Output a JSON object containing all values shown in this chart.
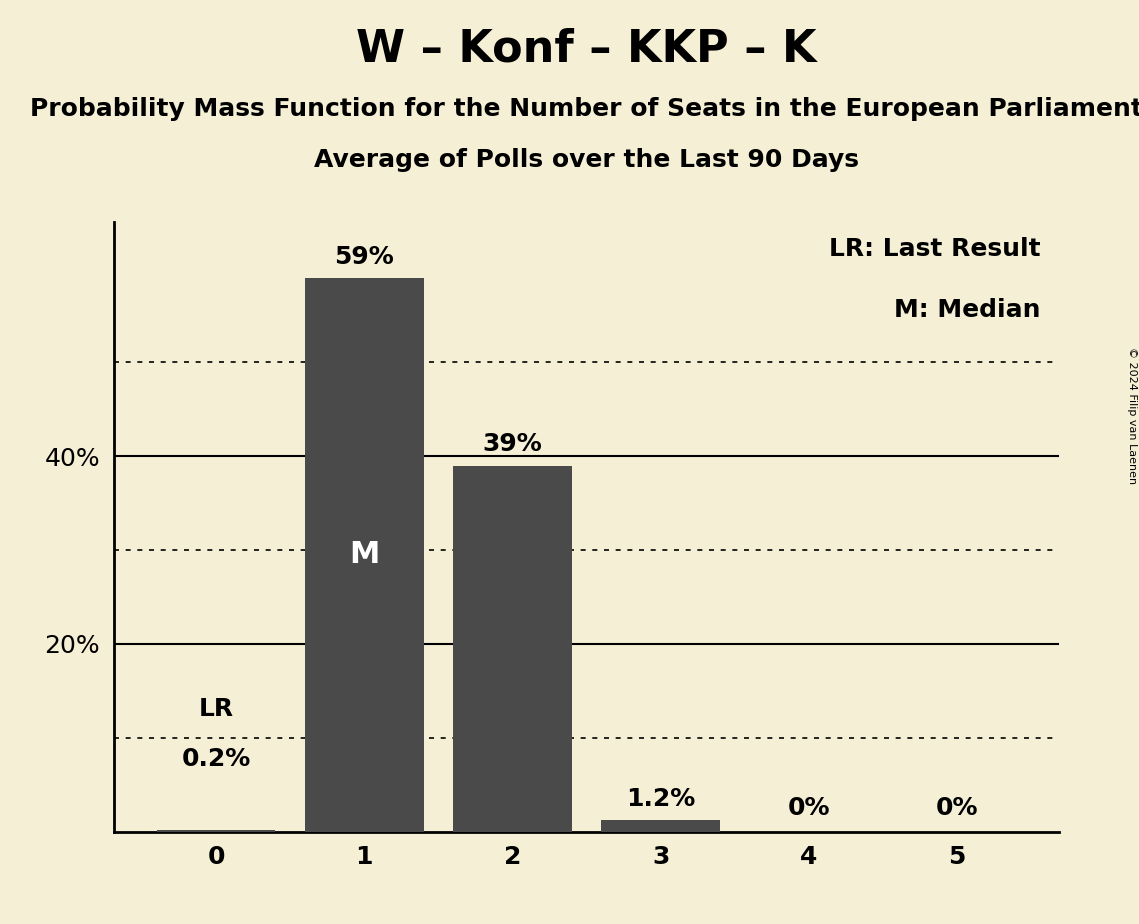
{
  "title": "W – Konf – KKP – K",
  "subtitle1": "Probability Mass Function for the Number of Seats in the European Parliament",
  "subtitle2": "Average of Polls over the Last 90 Days",
  "categories": [
    0,
    1,
    2,
    3,
    4,
    5
  ],
  "values": [
    0.002,
    0.59,
    0.39,
    0.012,
    0.0,
    0.0
  ],
  "bar_color": "#4a4a4a",
  "background_color": "#f5f0d5",
  "bar_labels": [
    "",
    "59%",
    "39%",
    "1.2%",
    "0%",
    "0%"
  ],
  "median_bar": 1,
  "lr_bar": 0,
  "legend_lr": "LR: Last Result",
  "legend_m": "M: Median",
  "solid_ticks": [
    0.2,
    0.4
  ],
  "dotted_ticks": [
    0.1,
    0.3,
    0.5
  ],
  "ylim": [
    0,
    0.65
  ],
  "copyright": "© 2024 Filip van Laenen",
  "title_fontsize": 32,
  "subtitle1_fontsize": 18,
  "subtitle2_fontsize": 18,
  "bar_label_fontsize": 18,
  "tick_label_fontsize": 18,
  "median_label_fontsize": 22,
  "lr_label_fontsize": 18,
  "legend_fontsize": 18
}
